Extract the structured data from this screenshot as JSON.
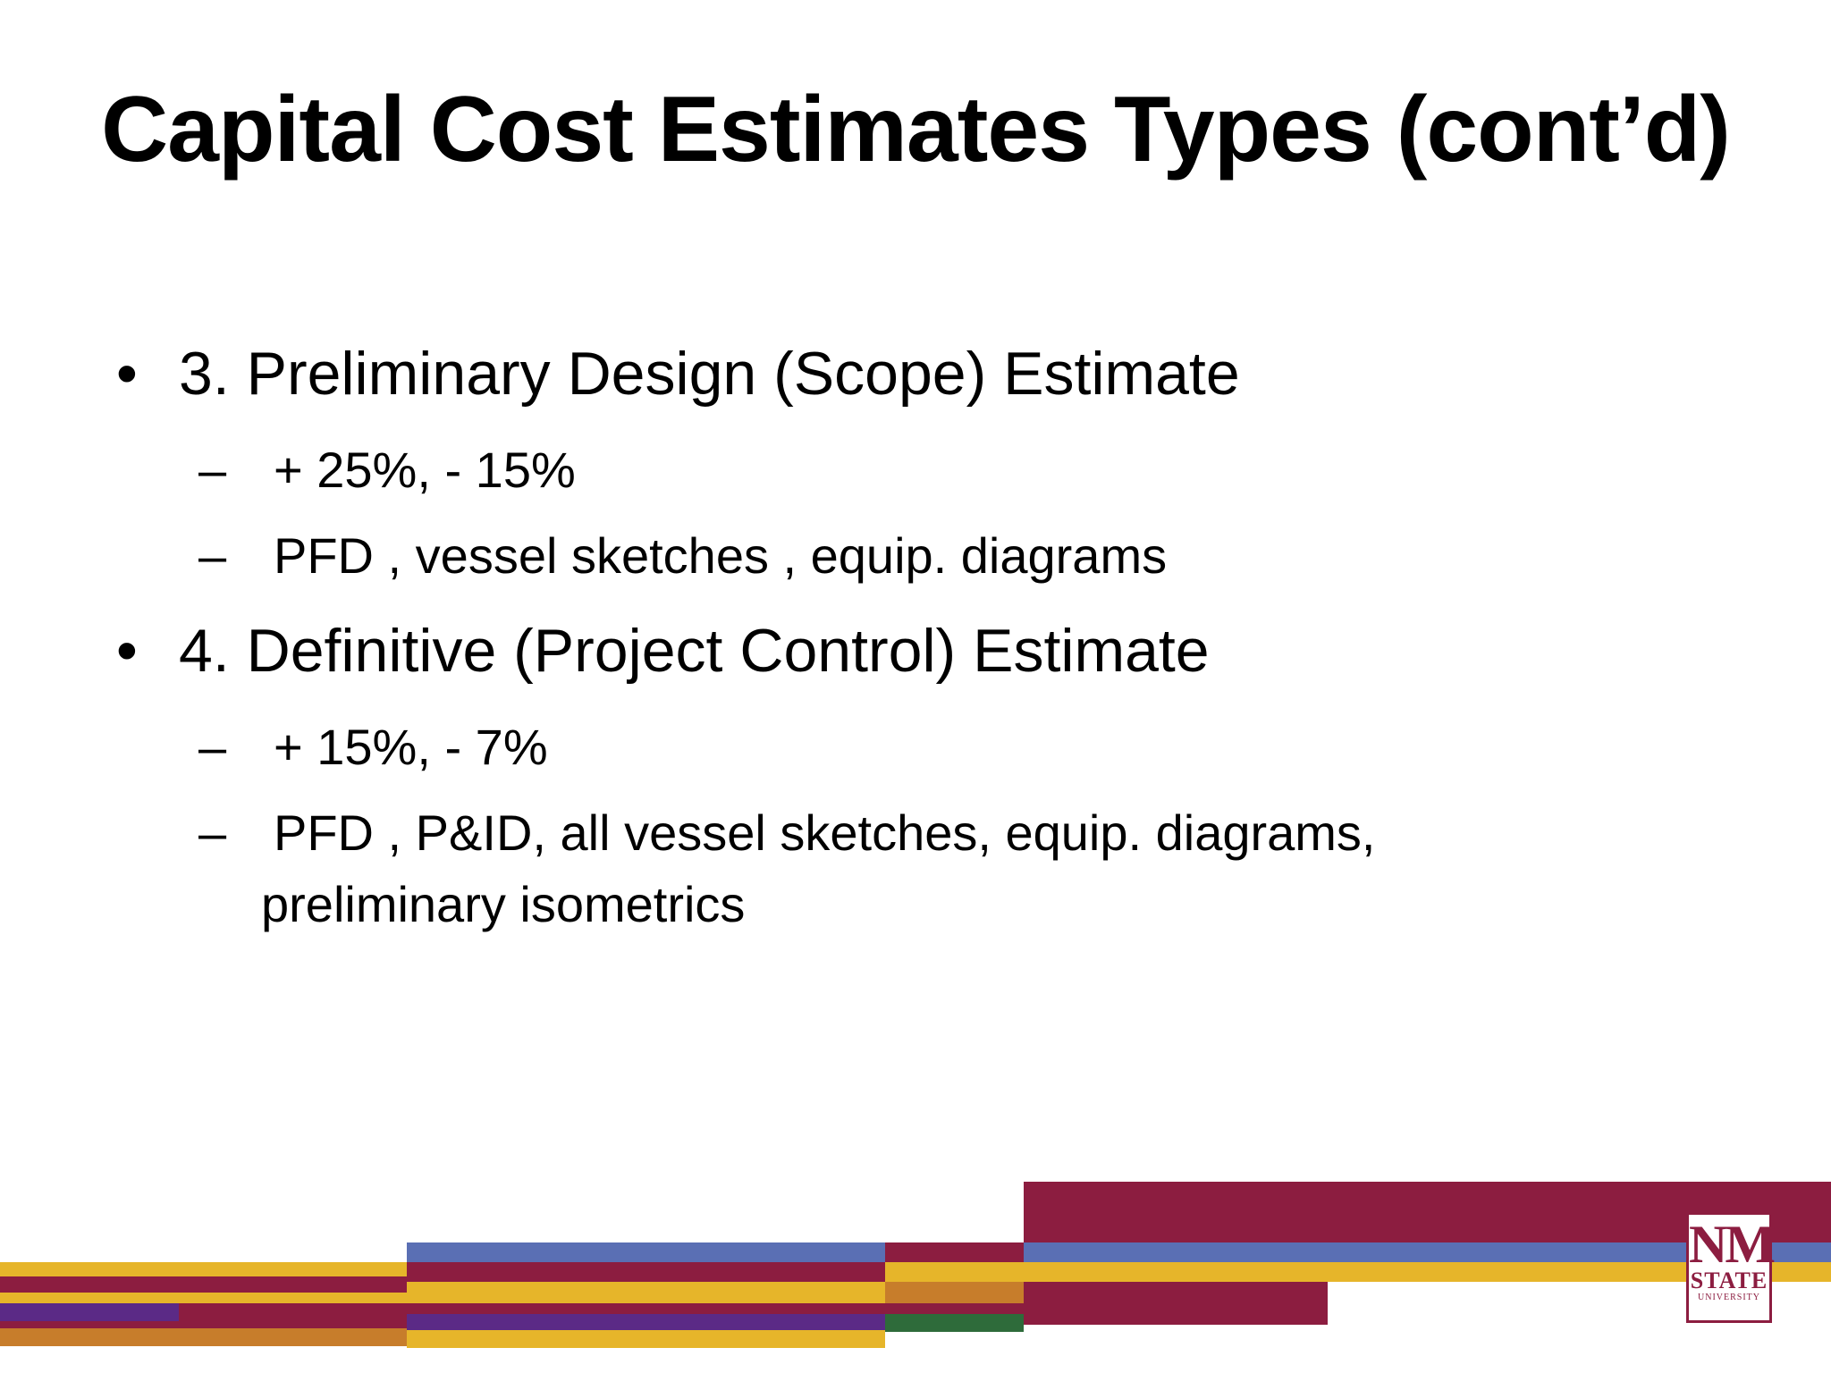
{
  "slide": {
    "title": "Capital Cost Estimates Types (cont’d)",
    "bullets": [
      {
        "marker": "•",
        "text": "3. Preliminary Design (Scope) Estimate",
        "sub": [
          {
            "marker": "–",
            "text": "+ 25%, - 15%"
          },
          {
            "marker": "–",
            "text": "PFD , vessel sketches , equip. diagrams"
          }
        ]
      },
      {
        "marker": "•",
        "text": "4. Definitive (Project Control) Estimate",
        "sub": [
          {
            "marker": "–",
            "text": "+ 15%, - 7%"
          },
          {
            "marker": "–",
            "text": "PFD , P&ID, all vessel sketches, equip. diagrams,",
            "continuation": "preliminary isometrics"
          }
        ]
      }
    ]
  },
  "logo": {
    "line1": "NM",
    "line2": "STATE",
    "line3": "UNIVERSITY"
  },
  "colors": {
    "crimson": "#8c1d40",
    "gold": "#e6b52a",
    "purple": "#5b2a86",
    "periwinkle": "#5a6fb4",
    "orange": "#c77d2b",
    "green": "#2e6b3a"
  }
}
